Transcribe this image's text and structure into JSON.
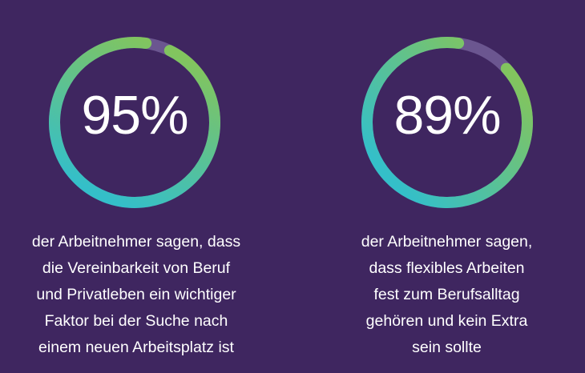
{
  "stats": [
    {
      "value": 95,
      "percent_label": "95%",
      "caption_lines": [
        "der Arbeitnehmer sagen, dass",
        "die Vereinbarkeit von Beruf",
        "und Privatleben ein wichtiger",
        "Faktor bei der Suche nach",
        "einem neuen Arbeitsplatz ist"
      ]
    },
    {
      "value": 89,
      "percent_label": "89%",
      "caption_lines": [
        "der Arbeitnehmer sagen,",
        "dass flexibles Arbeiten",
        "fest zum Berufsalltag",
        "gehören und kein Extra",
        "sein sollte"
      ]
    }
  ],
  "colors": {
    "background": "#3f2660",
    "track": "#6b5690",
    "gradient_start": "#34bfc9",
    "gradient_end": "#82c45e",
    "text": "#ffffff"
  }
}
